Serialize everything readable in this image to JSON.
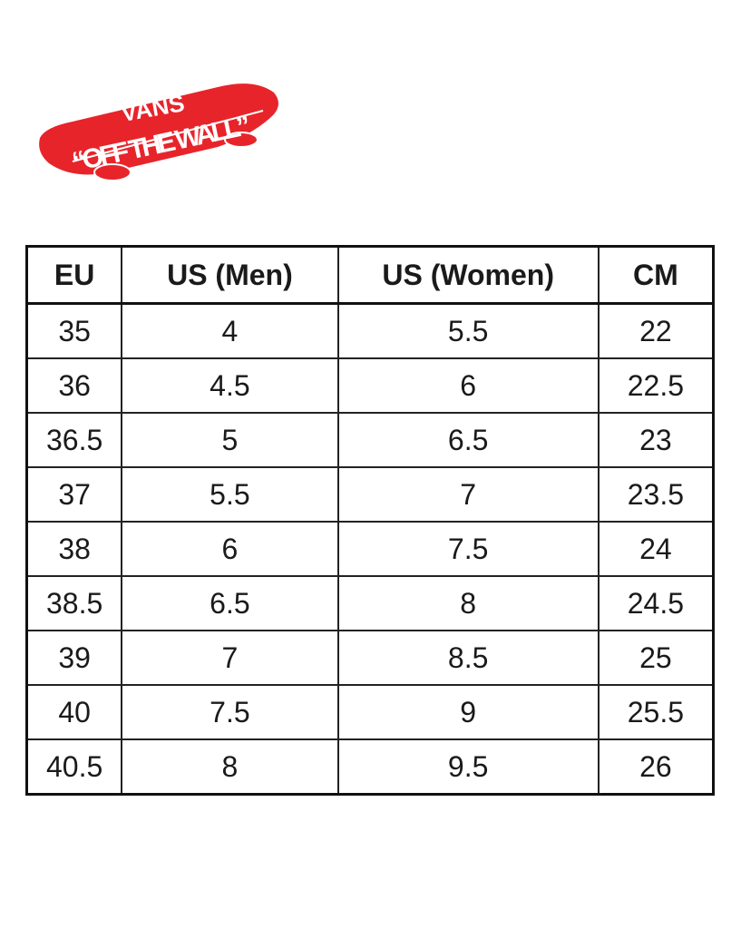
{
  "logo": {
    "brand": "VANS",
    "tagline": "“OFF THE WALL”",
    "color": "#e8242b"
  },
  "size_chart": {
    "headers": [
      "EU",
      "US (Men)",
      "US (Women)",
      "CM"
    ],
    "rows": [
      [
        "35",
        "4",
        "5.5",
        "22"
      ],
      [
        "36",
        "4.5",
        "6",
        "22.5"
      ],
      [
        "36.5",
        "5",
        "6.5",
        "23"
      ],
      [
        "37",
        "5.5",
        "7",
        "23.5"
      ],
      [
        "38",
        "6",
        "7.5",
        "24"
      ],
      [
        "38.5",
        "6.5",
        "8",
        "24.5"
      ],
      [
        "39",
        "7",
        "8.5",
        "25"
      ],
      [
        "40",
        "7.5",
        "9",
        "25.5"
      ],
      [
        "40.5",
        "8",
        "9.5",
        "26"
      ]
    ]
  }
}
